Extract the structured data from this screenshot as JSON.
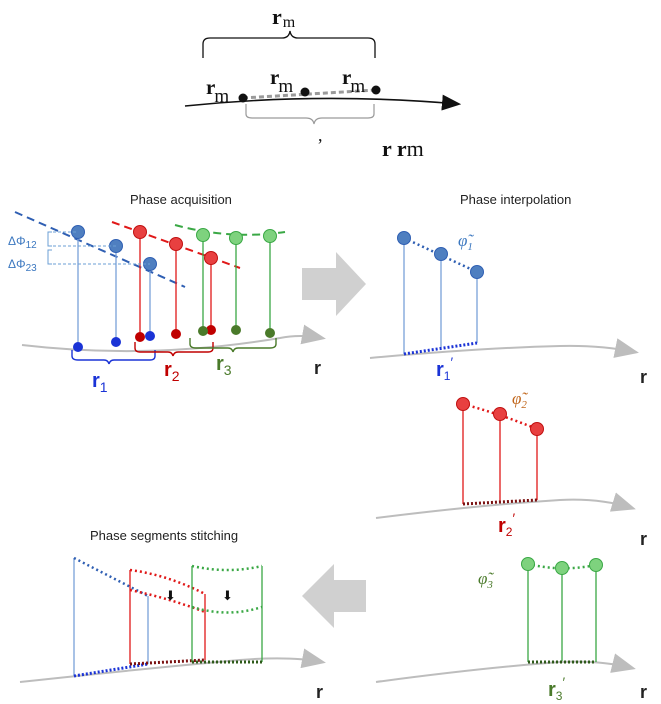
{
  "top": {
    "brace_label": "r",
    "brace_label_sub": "m",
    "point_left_label": "r",
    "point_left_sub": "m",
    "point_mid_label": "r",
    "point_mid_sub": "m",
    "point_right_label": "r",
    "point_right_sub": "m",
    "lower_brace_label": ",",
    "caption_bold": "r r",
    "caption_rest": "m"
  },
  "panels": {
    "acquisition": {
      "title": "Phase acquisition",
      "delta12": "ΔΦ",
      "delta12_sub": "12",
      "delta23": "ΔΦ",
      "delta23_sub": "23",
      "r1": "r",
      "r1_sub": "1",
      "r2": "r",
      "r2_sub": "2",
      "r3": "r",
      "r3_sub": "3",
      "axis": "r"
    },
    "interpolation": {
      "title": "Phase interpolation",
      "phi1": "φ̃",
      "phi1_sub": "1",
      "r1p": "r",
      "r1p_sub": "1",
      "r1p_prime": "′",
      "axis": "r"
    },
    "interp2": {
      "phi2": "φ̃",
      "phi2_sub": "2",
      "r2p": "r",
      "r2p_sub": "2",
      "r2p_prime": "′",
      "axis": "r"
    },
    "interp3": {
      "phi3": "φ̃",
      "phi3_sub": "3",
      "r3p": "r",
      "r3p_sub": "3",
      "r3p_prime": "′",
      "axis": "r"
    },
    "stitching": {
      "title": "Phase segments stitching",
      "arrow1": "⬇",
      "arrow2": "⬇",
      "axis": "r"
    }
  },
  "colors": {
    "blue": "#2f5fb3",
    "blue_pt": "#4f7fc0",
    "blue_dot": "#1a33d6",
    "red": "#e01818",
    "green": "#3aa845",
    "green_dark": "#4a7a2a",
    "orange": "#c0651a",
    "gray_axis": "#bdbdbd",
    "gray_arrow": "#cfcfcf"
  }
}
